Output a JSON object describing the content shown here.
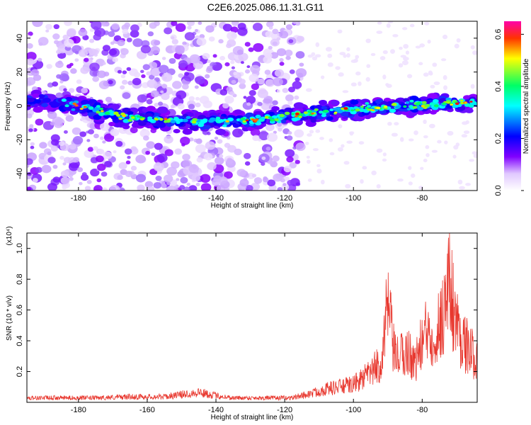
{
  "title": "C2E6.2025.086.11.31.G11",
  "chart_data": [
    {
      "type": "heatmap",
      "xlabel": "Height of straight line (km)",
      "ylabel": "Frequency (Hz)",
      "xlim": [
        -195,
        -64
      ],
      "ylim": [
        -50,
        50
      ],
      "x_ticks": [
        -180,
        -160,
        -140,
        -120,
        -100,
        -80
      ],
      "y_ticks": [
        -40,
        -20,
        0,
        20,
        40
      ],
      "colorbar": {
        "label": "Normalized spectral amplitude",
        "range": [
          0.0,
          0.65
        ],
        "ticks": [
          0.0,
          0.2,
          0.4,
          0.6
        ],
        "colormap": [
          "#ffffff",
          "#d9b8ff",
          "#7a00ff",
          "#0000ff",
          "#00ffff",
          "#00ff66",
          "#ffff00",
          "#ff0000",
          "#ff00aa"
        ]
      },
      "band_center": [
        {
          "x": -195,
          "y": 3
        },
        {
          "x": -180,
          "y": 0
        },
        {
          "x": -165,
          "y": -7
        },
        {
          "x": -150,
          "y": -9
        },
        {
          "x": -130,
          "y": -9
        },
        {
          "x": -115,
          "y": -5
        },
        {
          "x": -100,
          "y": -2
        },
        {
          "x": -85,
          "y": 0
        },
        {
          "x": -65,
          "y": 2
        }
      ],
      "noise_region_xmax": -115
    },
    {
      "type": "line",
      "xlabel": "Height of straight line (km)",
      "ylabel": "SNR (10 * v/v)",
      "y_multiplier": "(x10⁴)",
      "xlim": [
        -195,
        -64
      ],
      "ylim": [
        0,
        1.1
      ],
      "x_ticks": [
        -180,
        -160,
        -140,
        -120,
        -100,
        -80
      ],
      "y_ticks": [
        0.2,
        0.4,
        0.6,
        0.8,
        1.0
      ],
      "line_color": "#e8382f",
      "series": [
        {
          "x": [
            -195,
            -185,
            -175,
            -165,
            -155,
            -145,
            -140,
            -135,
            -125,
            -118,
            -112,
            -108,
            -104,
            -100,
            -96,
            -92,
            -90,
            -88,
            -86,
            -84,
            -82,
            -80,
            -78,
            -76,
            -74,
            -72,
            -70,
            -68,
            -66,
            -64
          ],
          "y": [
            0.04,
            0.04,
            0.04,
            0.05,
            0.05,
            0.09,
            0.06,
            0.04,
            0.04,
            0.04,
            0.08,
            0.12,
            0.14,
            0.16,
            0.24,
            0.35,
            0.86,
            0.4,
            0.42,
            0.45,
            0.35,
            0.55,
            0.66,
            0.6,
            0.8,
            1.08,
            0.7,
            0.55,
            0.45,
            0.4
          ]
        }
      ]
    }
  ]
}
